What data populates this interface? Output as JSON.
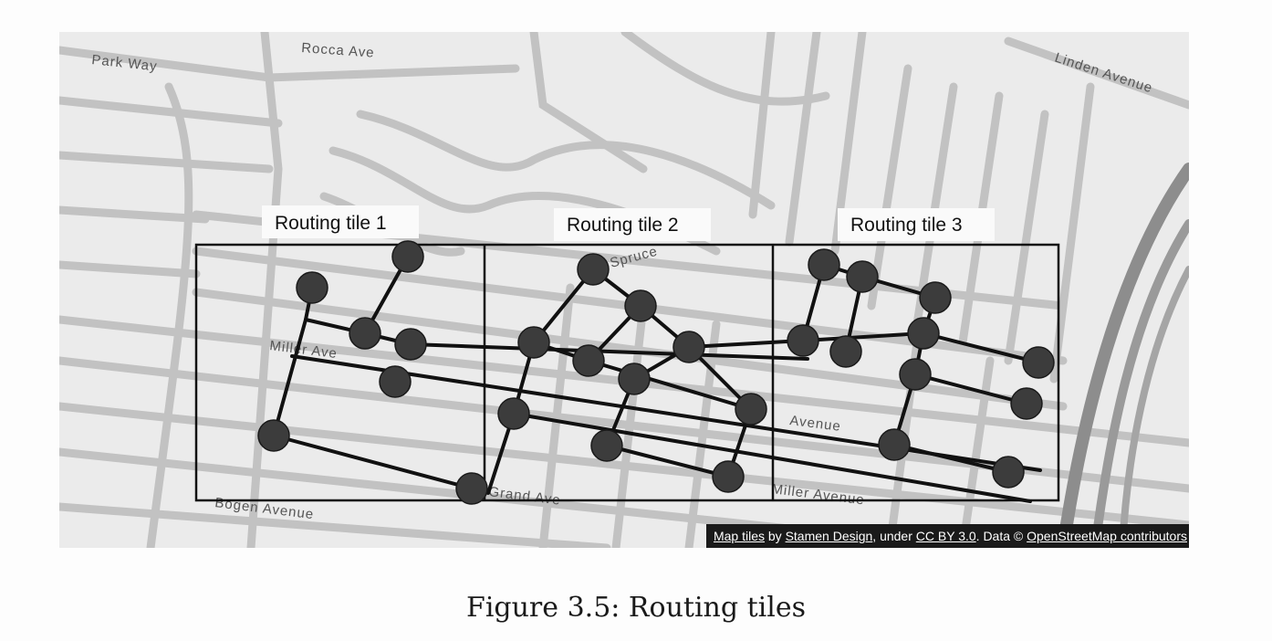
{
  "figure": {
    "streets": [
      "Park Way",
      "Rocca Ave",
      "Linden Avenue",
      "Miller Ave",
      "Bogen Avenue",
      "Grand Ave",
      "Miller Avenue",
      "Avenue",
      "Spruce"
    ],
    "tiles": [
      {
        "label": "Routing tile 1"
      },
      {
        "label": "Routing tile 2"
      },
      {
        "label": "Routing tile 3"
      }
    ],
    "attribution": {
      "map_tiles": "Map tiles",
      "by": " by ",
      "stamen": "Stamen Design",
      "under": ", under ",
      "license": "CC BY 3.0",
      "data": ". Data © ",
      "osm": "OpenStreetMap contributors"
    },
    "colors": {
      "node": "#3c3c3c",
      "edge": "#111111",
      "street": "#bdbdbd",
      "background": "#ebebeb"
    }
  },
  "caption": "Figure 3.5: Routing tiles"
}
